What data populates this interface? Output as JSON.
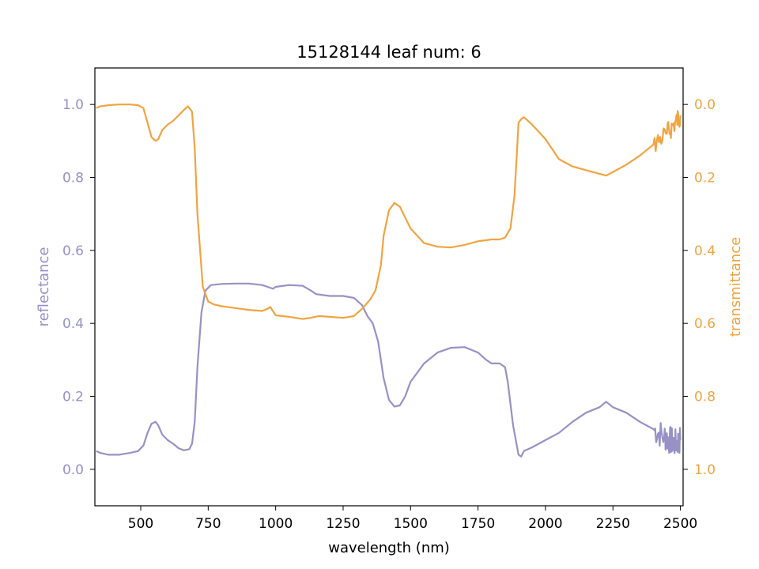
{
  "chart_data": {
    "type": "line",
    "title": "15128144 leaf num: 6",
    "xlabel": "wavelength (nm)",
    "xlim": [
      330,
      2510
    ],
    "x_ticks": [
      500,
      750,
      1000,
      1250,
      1500,
      1750,
      2000,
      2250,
      2500
    ],
    "x_tick_labels": [
      "500",
      "750",
      "1000",
      "1250",
      "1500",
      "1750",
      "2000",
      "2250",
      "2500"
    ],
    "left_axis": {
      "label": "reflectance",
      "ylim": [
        -0.1,
        1.1
      ],
      "ticks": [
        0.0,
        0.2,
        0.4,
        0.6,
        0.8,
        1.0
      ],
      "tick_labels": [
        "0.0",
        "0.2",
        "0.4",
        "0.6",
        "0.8",
        "1.0"
      ],
      "color": "#9791c6"
    },
    "right_axis": {
      "label": "transmittance",
      "ylim": [
        1.1,
        -0.1
      ],
      "inverted": true,
      "ticks": [
        0.0,
        0.2,
        0.4,
        0.6,
        0.8,
        1.0
      ],
      "tick_labels": [
        "0.0",
        "0.2",
        "0.4",
        "0.6",
        "0.8",
        "1.0"
      ],
      "color": "#f0a441"
    },
    "grid": false,
    "series": [
      {
        "key": "reflectance",
        "axis": "left",
        "color": "#9791c6",
        "x": [
          335,
          350,
          380,
          420,
          460,
          490,
          510,
          525,
          540,
          555,
          565,
          580,
          600,
          620,
          640,
          660,
          680,
          690,
          700,
          710,
          725,
          740,
          760,
          800,
          850,
          900,
          950,
          970,
          990,
          1000,
          1050,
          1100,
          1130,
          1150,
          1200,
          1250,
          1290,
          1320,
          1340,
          1360,
          1380,
          1400,
          1420,
          1440,
          1460,
          1480,
          1500,
          1550,
          1600,
          1650,
          1700,
          1750,
          1780,
          1800,
          1830,
          1850,
          1860,
          1870,
          1880,
          1895,
          1900,
          1910,
          1920,
          1950,
          2000,
          2050,
          2100,
          2150,
          2200,
          2225,
          2250,
          2300,
          2350,
          2400,
          2440,
          2460,
          2480,
          2500
        ],
        "values": [
          0.05,
          0.045,
          0.04,
          0.04,
          0.045,
          0.05,
          0.065,
          0.1,
          0.125,
          0.13,
          0.12,
          0.095,
          0.08,
          0.07,
          0.058,
          0.052,
          0.055,
          0.07,
          0.13,
          0.28,
          0.43,
          0.49,
          0.505,
          0.508,
          0.509,
          0.509,
          0.505,
          0.5,
          0.495,
          0.5,
          0.505,
          0.503,
          0.49,
          0.48,
          0.475,
          0.475,
          0.47,
          0.45,
          0.42,
          0.4,
          0.35,
          0.25,
          0.19,
          0.172,
          0.175,
          0.2,
          0.24,
          0.29,
          0.32,
          0.333,
          0.335,
          0.32,
          0.3,
          0.29,
          0.29,
          0.28,
          0.24,
          0.18,
          0.12,
          0.06,
          0.04,
          0.035,
          0.05,
          0.06,
          0.08,
          0.1,
          0.13,
          0.155,
          0.17,
          0.185,
          0.17,
          0.155,
          0.13,
          0.11,
          0.09,
          0.08,
          0.07,
          0.08
        ]
      },
      {
        "key": "transmittance",
        "axis": "right",
        "color": "#f0a441",
        "x": [
          335,
          350,
          380,
          420,
          460,
          490,
          510,
          525,
          540,
          555,
          565,
          580,
          600,
          620,
          640,
          660,
          675,
          690,
          700,
          710,
          730,
          750,
          770,
          800,
          850,
          900,
          950,
          970,
          980,
          1000,
          1050,
          1100,
          1130,
          1160,
          1200,
          1250,
          1290,
          1320,
          1350,
          1370,
          1390,
          1400,
          1420,
          1440,
          1460,
          1480,
          1500,
          1550,
          1600,
          1650,
          1700,
          1750,
          1780,
          1800,
          1830,
          1850,
          1870,
          1885,
          1895,
          1900,
          1910,
          1920,
          1950,
          2000,
          2050,
          2100,
          2150,
          2200,
          2225,
          2250,
          2300,
          2350,
          2400,
          2450,
          2480,
          2500
        ],
        "values": [
          0.01,
          0.005,
          0.002,
          0.0,
          0.0,
          0.002,
          0.01,
          0.05,
          0.09,
          0.1,
          0.095,
          0.07,
          0.055,
          0.045,
          0.03,
          0.015,
          0.005,
          0.02,
          0.12,
          0.3,
          0.5,
          0.54,
          0.548,
          0.553,
          0.558,
          0.563,
          0.566,
          0.56,
          0.555,
          0.578,
          0.582,
          0.588,
          0.585,
          0.58,
          0.582,
          0.585,
          0.58,
          0.56,
          0.535,
          0.51,
          0.44,
          0.36,
          0.29,
          0.27,
          0.28,
          0.31,
          0.34,
          0.38,
          0.39,
          0.392,
          0.385,
          0.375,
          0.372,
          0.37,
          0.37,
          0.365,
          0.34,
          0.25,
          0.12,
          0.05,
          0.04,
          0.035,
          0.055,
          0.095,
          0.15,
          0.17,
          0.18,
          0.19,
          0.195,
          0.185,
          0.165,
          0.14,
          0.11,
          0.08,
          0.05,
          0.03
        ]
      }
    ],
    "noisy_segments": [
      {
        "series": "reflectance",
        "x_from": 2380,
        "x_to": 2495,
        "amplitude": 0.04
      },
      {
        "series": "transmittance",
        "x_from": 2400,
        "x_to": 2495,
        "amplitude": 0.03
      }
    ]
  }
}
